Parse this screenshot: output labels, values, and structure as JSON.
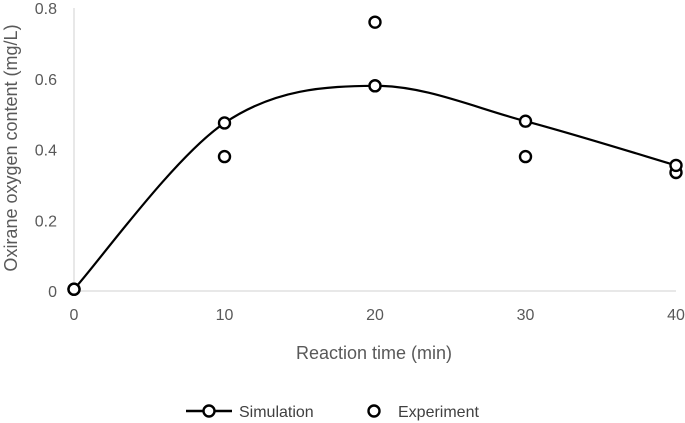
{
  "chart_data": {
    "type": "scatter",
    "xlabel": "Reaction time (min)",
    "ylabel": "Oxirane oxygen content (mg/L)",
    "xlim": [
      0,
      40
    ],
    "ylim": [
      0,
      0.8
    ],
    "x_ticks": [
      0,
      10,
      20,
      30,
      40
    ],
    "y_ticks": [
      0,
      0.2,
      0.4,
      0.6,
      0.8
    ],
    "x_tick_labels": [
      "0",
      "10",
      "20",
      "30",
      "40"
    ],
    "y_tick_labels": [
      "0",
      "0.2",
      "0.4",
      "0.6",
      "0.8"
    ],
    "grid": false,
    "legend_position": "bottom",
    "series": [
      {
        "name": "Simulation",
        "style": "smooth-line-with-markers",
        "x": [
          0,
          10,
          20,
          30,
          40
        ],
        "y": [
          0.005,
          0.475,
          0.58,
          0.48,
          0.355
        ]
      },
      {
        "name": "Experiment",
        "style": "markers",
        "x": [
          0,
          10,
          20,
          20,
          30,
          40
        ],
        "y": [
          0.005,
          0.38,
          0.58,
          0.76,
          0.38,
          0.335
        ]
      }
    ],
    "colors": {
      "series": "#000000",
      "axis": "#d9d9d9",
      "text": "#595959"
    }
  }
}
